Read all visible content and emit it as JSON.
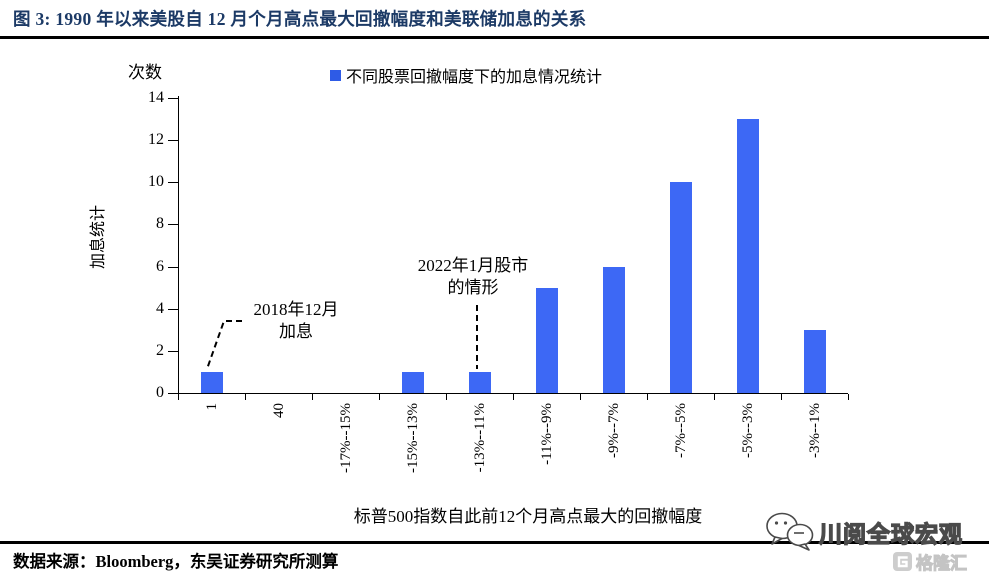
{
  "header": {
    "title": "图 3:  1990 年以来美股自 12 月个月高点最大回撤幅度和美联储加息的关系"
  },
  "chart_data": {
    "type": "bar",
    "title": "1990 年以来美股自 12 月个月高点最大回撤幅度和美联储加息的关系",
    "legend": [
      "不同股票回撤幅度下的加息情况统计"
    ],
    "legend_position": "top",
    "grid": false,
    "categories": [
      "1",
      "40",
      "-17%--15%",
      "-15%--13%",
      "-13%--11%",
      "-11%--9%",
      "-9%--7%",
      "-7%--5%",
      "-5%--3%",
      "-3%--1%"
    ],
    "values": [
      1,
      0,
      0,
      1,
      1,
      5,
      6,
      10,
      13,
      3
    ],
    "xlabel": "标普500指数自此前12个月高点最大的回撤幅度",
    "ylabel": "加息统计",
    "y_unit_label": "次数",
    "yticks": [
      0,
      2,
      4,
      6,
      8,
      10,
      12,
      14
    ],
    "ylim": [
      0,
      14
    ],
    "bar_color": "#3d68f5",
    "legend_marker_color": "#2e5be6",
    "title_color": "#1c3a66",
    "annotations": [
      {
        "text_lines": [
          "2018年12月",
          "加息"
        ],
        "target_category": "1",
        "target_value": 1
      },
      {
        "text_lines": [
          "2022年1月股市",
          "的情形"
        ],
        "target_category": "-13%--11%",
        "target_value": 1
      }
    ]
  },
  "footer": {
    "source": "数据来源：Bloomberg，东吴证券研究所测算",
    "watermark_wechat": "川阅全球宏观",
    "watermark_gelonghui": "格隆汇"
  }
}
